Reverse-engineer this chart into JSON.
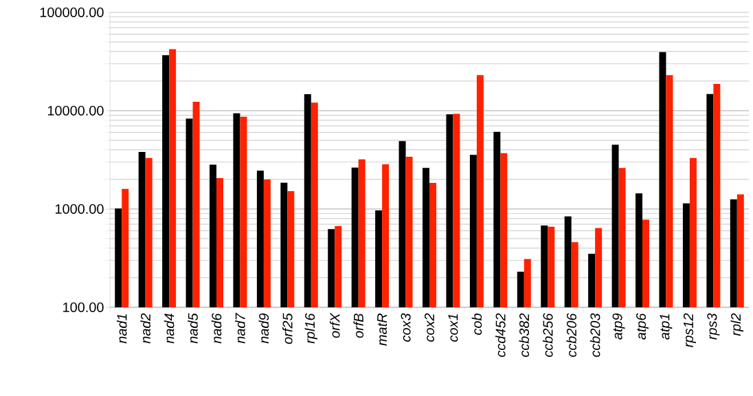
{
  "chart_data": {
    "type": "bar",
    "log": "y",
    "grid": "y",
    "categories": [
      "nad1",
      "nad2",
      "nad4",
      "nad5",
      "nad6",
      "nad7",
      "nad9",
      "orf25",
      "rpl16",
      "orfX",
      "orfB",
      "matR",
      "cox3",
      "cox2",
      "cox1",
      "cob",
      "ccd452",
      "ccb382",
      "ccb256",
      "ccb206",
      "ccb203",
      "atp9",
      "atp6",
      "atp1",
      "rps12",
      "rps3",
      "rpl2"
    ],
    "series": [
      {
        "color": "#000000",
        "values": [
          1010,
          3800,
          36700,
          8300,
          2830,
          9400,
          2450,
          1850,
          14700,
          625,
          2640,
          970,
          4900,
          2620,
          9200,
          3550,
          6100,
          230,
          680,
          840,
          350,
          4500,
          1440,
          39400,
          1140,
          14800,
          1250
        ]
      },
      {
        "color": "#ff2200",
        "values": [
          1600,
          3300,
          42200,
          12300,
          2060,
          8700,
          2000,
          1520,
          12100,
          670,
          3200,
          2850,
          3400,
          1840,
          9300,
          23000,
          3700,
          310,
          660,
          460,
          640,
          2620,
          780,
          23000,
          3300,
          18700,
          1410
        ]
      }
    ],
    "ylim": [
      100,
      100000
    ],
    "yticks": [
      {
        "value": 100,
        "label": "100.00"
      },
      {
        "value": 1000,
        "label": "1000.00"
      },
      {
        "value": 10000,
        "label": "10000.00"
      },
      {
        "value": 100000,
        "label": "100000.00"
      }
    ]
  }
}
